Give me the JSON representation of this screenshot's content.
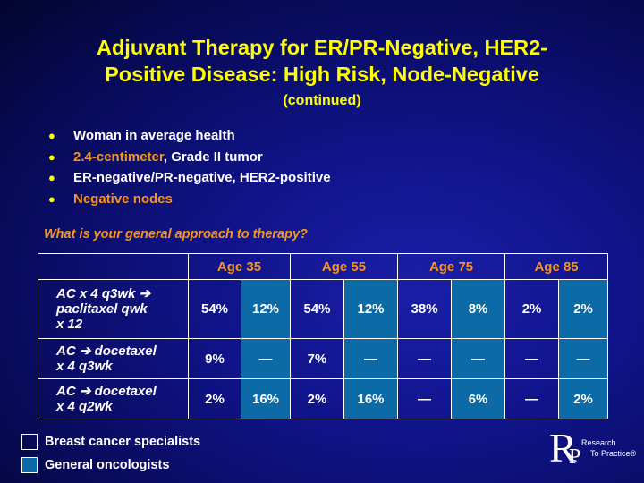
{
  "title": {
    "line1": "Adjuvant Therapy for ER/PR-Negative, HER2-",
    "line2": "Positive Disease: High Risk, Node-Negative",
    "subtitle": "(continued)"
  },
  "bullets": [
    {
      "parts": [
        {
          "text": "Woman in average health",
          "color": "white"
        }
      ]
    },
    {
      "parts": [
        {
          "text": "2.4-centimeter",
          "color": "orange"
        },
        {
          "text": ", Grade II tumor",
          "color": "white"
        }
      ]
    },
    {
      "parts": [
        {
          "text": "ER-negative/PR-negative, HER2-positive",
          "color": "white"
        }
      ]
    },
    {
      "parts": [
        {
          "text": "Negative nodes",
          "color": "orange"
        }
      ]
    }
  ],
  "bullet_symbol": "●",
  "question": "What is your general approach to therapy?",
  "table": {
    "age_headers": [
      "Age 35",
      "Age 55",
      "Age 75",
      "Age 85"
    ],
    "rows": [
      {
        "label_lines": [
          "AC x 4 q3wk ➔",
          "paclitaxel qwk",
          "x 12"
        ],
        "values": [
          "54%",
          "12%",
          "54%",
          "12%",
          "38%",
          "8%",
          "2%",
          "2%"
        ]
      },
      {
        "label_lines": [
          "AC ➔ docetaxel",
          "x 4 q3wk"
        ],
        "values": [
          "9%",
          "—",
          "7%",
          "—",
          "—",
          "—",
          "—",
          "—"
        ]
      },
      {
        "label_lines": [
          "AC ➔ docetaxel",
          "x 4 q2wk"
        ],
        "values": [
          "2%",
          "16%",
          "2%",
          "16%",
          "—",
          "6%",
          "—",
          "2%"
        ]
      }
    ]
  },
  "legend": [
    {
      "label": "Breast cancer specialists",
      "color": "transparent"
    },
    {
      "label": "General oncologists",
      "color": "#0c6aa6"
    }
  ],
  "logo": {
    "letter_r": "R",
    "letter_p": "P",
    "line1": "Research",
    "line2": "To Practice®"
  },
  "colors": {
    "title": "#ffff00",
    "accent": "#f7941d",
    "general_oncologist_cell": "#0c6aa6"
  }
}
